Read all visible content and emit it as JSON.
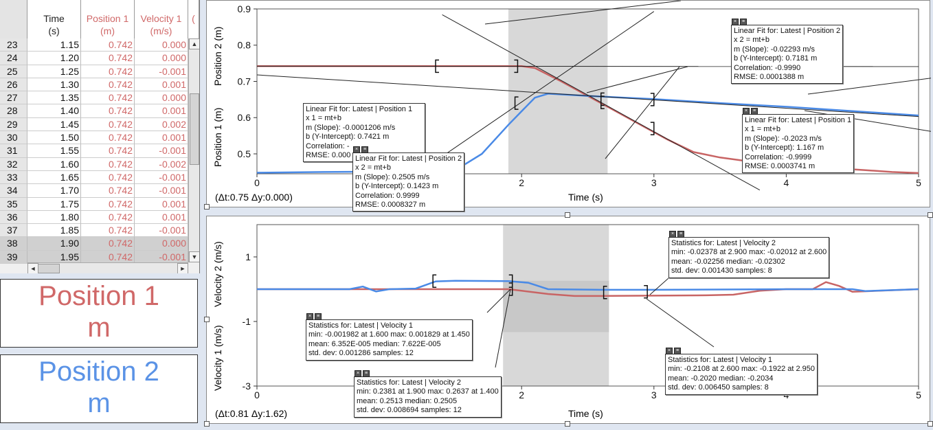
{
  "table": {
    "headers": {
      "time": [
        "Time",
        "(s)"
      ],
      "position1": [
        "Position 1",
        "(m)"
      ],
      "velocity1": [
        "Velocity 1",
        "(m/s)"
      ],
      "more": "("
    },
    "rows": [
      {
        "idx": "23",
        "t": "1.15",
        "p": "0.742",
        "v": "0.000"
      },
      {
        "idx": "24",
        "t": "1.20",
        "p": "0.742",
        "v": "0.000"
      },
      {
        "idx": "25",
        "t": "1.25",
        "p": "0.742",
        "v": "-0.001"
      },
      {
        "idx": "26",
        "t": "1.30",
        "p": "0.742",
        "v": "0.001"
      },
      {
        "idx": "27",
        "t": "1.35",
        "p": "0.742",
        "v": "0.000"
      },
      {
        "idx": "28",
        "t": "1.40",
        "p": "0.742",
        "v": "0.001"
      },
      {
        "idx": "29",
        "t": "1.45",
        "p": "0.742",
        "v": "0.002"
      },
      {
        "idx": "30",
        "t": "1.50",
        "p": "0.742",
        "v": "0.001"
      },
      {
        "idx": "31",
        "t": "1.55",
        "p": "0.742",
        "v": "-0.001"
      },
      {
        "idx": "32",
        "t": "1.60",
        "p": "0.742",
        "v": "-0.002"
      },
      {
        "idx": "33",
        "t": "1.65",
        "p": "0.742",
        "v": "-0.001"
      },
      {
        "idx": "34",
        "t": "1.70",
        "p": "0.742",
        "v": "-0.001"
      },
      {
        "idx": "35",
        "t": "1.75",
        "p": "0.742",
        "v": "0.001"
      },
      {
        "idx": "36",
        "t": "1.80",
        "p": "0.742",
        "v": "0.001"
      },
      {
        "idx": "37",
        "t": "1.85",
        "p": "0.742",
        "v": "-0.001"
      },
      {
        "idx": "38",
        "t": "1.90",
        "p": "0.742",
        "v": "0.000",
        "selected": true
      },
      {
        "idx": "39",
        "t": "1.95",
        "p": "0.742",
        "v": "-0.001",
        "selected": true
      }
    ]
  },
  "meters": [
    {
      "label": "Position 1",
      "unit": "m",
      "color": "#d06868"
    },
    {
      "label": "Position 2",
      "unit": "m",
      "color": "#5b93e6"
    }
  ],
  "colors": {
    "series1": "#c86464",
    "series2": "#4a8ae6",
    "fit": "#222222",
    "selection": "#d8d8d8"
  },
  "graph1": {
    "delta": "(Δt:0.75 Δy:0.000)",
    "xlabel": "Time (s)",
    "ylabel_top": "Position 2 (m)",
    "ylabel_bottom": "Position 1 (m)",
    "xticks": [
      "0",
      "1",
      "2",
      "3",
      "4",
      "5"
    ],
    "yticks": [
      "0.9",
      "0.8",
      "0.7",
      "0.6",
      "0.5"
    ],
    "annotations": [
      {
        "lines": [
          "Linear Fit for: Latest | Position 2",
          "x 2 = mt+b",
          "m (Slope): -0.02293 m/s",
          "b (Y-Intercept): 0.7181 m",
          "Correlation: -0.9990",
          "RMSE: 0.0001388 m"
        ]
      },
      {
        "lines": [
          "Linear Fit for: Latest | Position 1",
          "x 1 = mt+b",
          "m (Slope): -0.0001206 m/s",
          "b (Y-Intercept): 0.7421 m",
          "Correlation: -",
          "RMSE: 0.000"
        ]
      },
      {
        "lines": [
          "Linear Fit for: Latest | Position 2",
          "x 2 = mt+b",
          "m (Slope): 0.2505 m/s",
          "b (Y-Intercept): 0.1423 m",
          "Correlation: 0.9999",
          "RMSE: 0.0008327 m"
        ]
      },
      {
        "lines": [
          "Linear Fit for: Latest | Position 1",
          "x 1 = mt+b",
          "m (Slope): -0.2023 m/s",
          "b (Y-Intercept): 1.167 m",
          "Correlation: -0.9999",
          "RMSE: 0.0003741 m"
        ]
      }
    ]
  },
  "graph2": {
    "delta": "(Δt:0.81 Δy:1.62)",
    "xlabel": "Time (s)",
    "ylabel_top": "Velocity 2 (m/s)",
    "ylabel_bottom": "Velocity 1 (m/s)",
    "xticks": [
      "0",
      "1",
      "2",
      "3",
      "4",
      "5"
    ],
    "yticks": [
      "1",
      "-1",
      "-3"
    ],
    "annotations": [
      {
        "lines": [
          "Statistics for: Latest | Velocity 2",
          "min: -0.02378 at 2.900 max: -0.02012 at 2.600",
          "mean: -0.02256 median: -0.02302",
          "std. dev: 0.001430 samples: 8"
        ]
      },
      {
        "lines": [
          "Statistics for: Latest | Velocity 1",
          "min: -0.001982 at 1.600 max: 0.001829 at 1.450",
          "mean: 6.352E-005 median: 7.622E-005",
          "std. dev: 0.001286 samples: 12"
        ]
      },
      {
        "lines": [
          "Statistics for: Latest | Velocity 2",
          "min: 0.2381 at 1.900 max: 0.2637 at 1.400",
          "mean: 0.2513 median: 0.2505",
          "std. dev: 0.008694 samples: 12"
        ]
      },
      {
        "lines": [
          "Statistics for: Latest | Velocity 1",
          "min: -0.2108 at 2.600 max: -0.1922 at 2.950",
          "mean: -0.2020 median: -0.2034",
          "std. dev: 0.006450 samples: 8"
        ]
      }
    ]
  }
}
